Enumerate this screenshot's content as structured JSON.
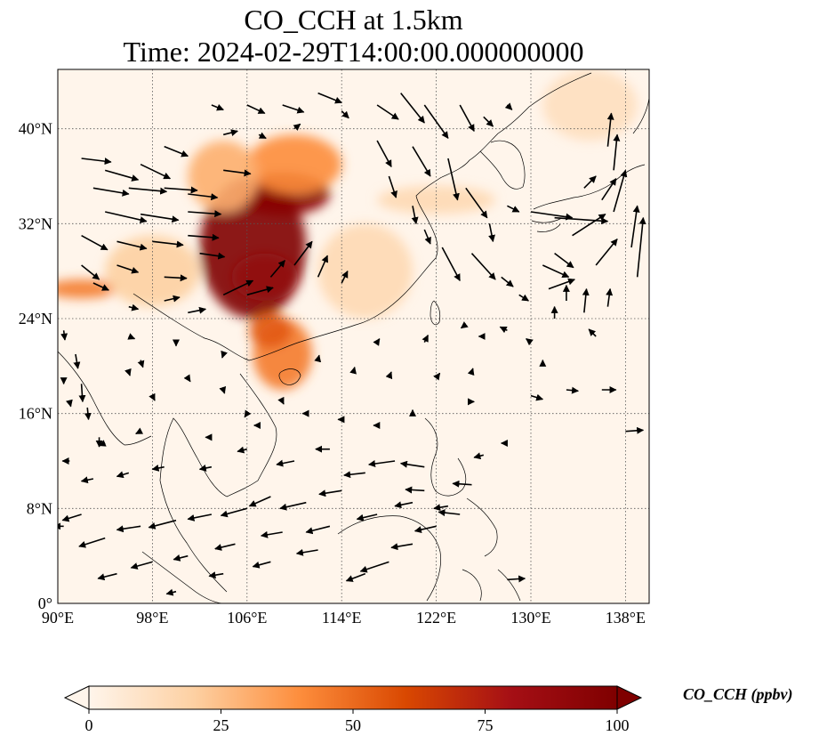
{
  "title": {
    "line1": "CO_CCH at 1.5km",
    "line2": "Time: 2024-02-29T14:00:00.000000000"
  },
  "map": {
    "lon_range": [
      90,
      140
    ],
    "lat_range": [
      0,
      45
    ],
    "lon_ticks": [
      {
        "value": 90,
        "label": "90°E"
      },
      {
        "value": 98,
        "label": "98°E"
      },
      {
        "value": 106,
        "label": "106°E"
      },
      {
        "value": 114,
        "label": "114°E"
      },
      {
        "value": 122,
        "label": "122°E"
      },
      {
        "value": 130,
        "label": "130°E"
      },
      {
        "value": 138,
        "label": "138°E"
      }
    ],
    "lat_ticks": [
      {
        "value": 0,
        "label": "0°"
      },
      {
        "value": 8,
        "label": "8°N"
      },
      {
        "value": 16,
        "label": "16°N"
      },
      {
        "value": 24,
        "label": "24°N"
      },
      {
        "value": 32,
        "label": "32°N"
      },
      {
        "value": 40,
        "label": "40°N"
      }
    ],
    "gridlines": true,
    "background_color": "#fff5eb"
  },
  "colorbar": {
    "label": "CO_CCH (ppbv)",
    "range": [
      0,
      100
    ],
    "ticks": [
      {
        "value": 0,
        "label": "0"
      },
      {
        "value": 25,
        "label": "25"
      },
      {
        "value": 50,
        "label": "50"
      },
      {
        "value": 75,
        "label": "75"
      },
      {
        "value": 100,
        "label": "100"
      }
    ],
    "colormap": [
      "#fff5eb",
      "#fdd0a2",
      "#fd8d3c",
      "#d94801",
      "#a50f15",
      "#7f0000"
    ],
    "extend": "both"
  },
  "plumes": [
    {
      "lon": 106.5,
      "lat": 30,
      "rx": 4.5,
      "ry": 6,
      "value": 100
    },
    {
      "lon": 109,
      "lat": 34.5,
      "rx": 4,
      "ry": 1.8,
      "value": 95
    },
    {
      "lon": 107.5,
      "lat": 27.5,
      "rx": 2.8,
      "ry": 2,
      "value": 90
    },
    {
      "lon": 110,
      "lat": 37,
      "rx": 4,
      "ry": 2.5,
      "value": 40
    },
    {
      "lon": 109,
      "lat": 21,
      "rx": 2.5,
      "ry": 3,
      "value": 45
    },
    {
      "lon": 108,
      "lat": 23,
      "rx": 1.8,
      "ry": 1.5,
      "value": 55
    },
    {
      "lon": 92,
      "lat": 26.5,
      "rx": 3,
      "ry": 0.8,
      "value": 45
    },
    {
      "lon": 116,
      "lat": 28,
      "rx": 4,
      "ry": 4,
      "value": 15
    },
    {
      "lon": 122,
      "lat": 34,
      "rx": 5,
      "ry": 1.2,
      "value": 15
    },
    {
      "lon": 98,
      "lat": 28,
      "rx": 4,
      "ry": 3,
      "value": 20
    },
    {
      "lon": 135,
      "lat": 42,
      "rx": 4,
      "ry": 3,
      "value": 12
    },
    {
      "lon": 104,
      "lat": 36,
      "rx": 3,
      "ry": 3,
      "value": 30
    }
  ],
  "wind_vectors": [
    [
      92,
      37.5,
      2.5,
      -0.3
    ],
    [
      94,
      36.5,
      2.8,
      -0.8
    ],
    [
      97,
      37,
      2.5,
      -1.2
    ],
    [
      99,
      38.5,
      2,
      -0.8
    ],
    [
      93,
      35,
      3,
      -0.5
    ],
    [
      96,
      35,
      3.2,
      -0.3
    ],
    [
      99,
      35,
      2.8,
      -0.2
    ],
    [
      101,
      34.5,
      2.5,
      -0.3
    ],
    [
      94,
      33,
      3.5,
      -0.8
    ],
    [
      97,
      32.8,
      3.2,
      -0.5
    ],
    [
      101,
      33,
      2.8,
      -0.2
    ],
    [
      92,
      31,
      2.2,
      -1.2
    ],
    [
      95,
      30.5,
      2.5,
      -0.6
    ],
    [
      98,
      30.5,
      2.6,
      -0.3
    ],
    [
      101,
      31,
      2.6,
      -0.2
    ],
    [
      92,
      28.5,
      1.5,
      -1.2
    ],
    [
      95,
      28.5,
      1.8,
      -0.6
    ],
    [
      99,
      27.5,
      1.9,
      -0.1
    ],
    [
      99,
      25.5,
      1.3,
      0.3
    ],
    [
      101,
      24.5,
      1.5,
      0.3
    ],
    [
      96,
      25,
      0.8,
      -0.2
    ],
    [
      104,
      26,
      2.5,
      1.2
    ],
    [
      106,
      26,
      2.2,
      0.6
    ],
    [
      108,
      27.5,
      1.2,
      1.4
    ],
    [
      110,
      28.5,
      1.5,
      2
    ],
    [
      112,
      27.5,
      0.8,
      1.8
    ],
    [
      114,
      27,
      0.5,
      1
    ],
    [
      104,
      36.5,
      2.3,
      -0.3
    ],
    [
      102,
      29.5,
      2.1,
      -0.3
    ],
    [
      103,
      42,
      1,
      -0.4
    ],
    [
      106,
      42,
      1.5,
      -0.7
    ],
    [
      109,
      42,
      1.8,
      -0.6
    ],
    [
      112,
      43,
      2,
      -0.8
    ],
    [
      104,
      39.5,
      1.2,
      0.3
    ],
    [
      107,
      39.5,
      0.6,
      -0.3
    ],
    [
      110,
      40,
      0.5,
      0.4
    ],
    [
      114,
      41.5,
      0.6,
      -0.6
    ],
    [
      117,
      42,
      1.8,
      -1.2
    ],
    [
      119,
      43,
      2,
      -2.5
    ],
    [
      121,
      42,
      2,
      -2.8
    ],
    [
      124,
      42,
      1.2,
      -2.2
    ],
    [
      126,
      41,
      0.8,
      -0.8
    ],
    [
      128,
      42,
      0.4,
      -0.4
    ],
    [
      117,
      39,
      1.2,
      -2.2
    ],
    [
      120,
      38.5,
      1.5,
      -2.5
    ],
    [
      123,
      37.5,
      0.8,
      -3.5
    ],
    [
      124.5,
      35,
      1.8,
      -2.5
    ],
    [
      118,
      36,
      0.6,
      -1.8
    ],
    [
      120,
      33.5,
      0.3,
      -1.5
    ],
    [
      121,
      31.5,
      0.5,
      -1.2
    ],
    [
      122.5,
      30,
      1.5,
      -2.8
    ],
    [
      125,
      29.5,
      2,
      -2.2
    ],
    [
      126.5,
      32,
      0.3,
      -1.5
    ],
    [
      127.5,
      27.5,
      1,
      -0.8
    ],
    [
      129,
      26,
      0.8,
      -0.5
    ],
    [
      131,
      28.5,
      2.2,
      -1
    ],
    [
      131.5,
      26.5,
      2.2,
      0.8
    ],
    [
      132,
      29.5,
      1.6,
      -1.2
    ],
    [
      133.5,
      31,
      2.8,
      1.8
    ],
    [
      135.5,
      28.5,
      1.8,
      2.2
    ],
    [
      137,
      33,
      1,
      3.5
    ],
    [
      138.5,
      30,
      0.5,
      3.5
    ],
    [
      139,
      27.5,
      0.5,
      5
    ],
    [
      136,
      34,
      1.2,
      1.8
    ],
    [
      132,
      32.5,
      4.5,
      -0.3
    ],
    [
      130,
      33,
      3.5,
      -0.5
    ],
    [
      128,
      33.5,
      1,
      -0.5
    ],
    [
      137,
      36.5,
      0.3,
      3
    ],
    [
      136.5,
      38.5,
      0.3,
      2.8
    ],
    [
      134.5,
      35,
      1,
      1
    ],
    [
      132,
      24,
      0,
      1
    ],
    [
      133,
      25.5,
      0,
      1.3
    ],
    [
      134.5,
      24.5,
      0.2,
      2
    ],
    [
      135.5,
      22.5,
      -0.6,
      0.6
    ],
    [
      136.5,
      25,
      0.2,
      1.5
    ],
    [
      130,
      22,
      -0.4,
      0.3
    ],
    [
      131,
      20,
      0,
      0.5
    ],
    [
      128,
      23,
      -0.6,
      0.3
    ],
    [
      126,
      22.5,
      -0.4,
      0
    ],
    [
      124.5,
      23.5,
      -0.4,
      -0.3
    ],
    [
      130,
      17.5,
      1,
      -0.3
    ],
    [
      133,
      18,
      1,
      -0.1
    ],
    [
      136,
      18,
      1.2,
      0
    ],
    [
      138,
      14.5,
      1.5,
      0.1
    ],
    [
      128,
      13.5,
      -0.5,
      0
    ],
    [
      126,
      12.5,
      -0.8,
      -0.2
    ],
    [
      125,
      10,
      -1.6,
      0.1
    ],
    [
      124,
      7.5,
      -1.8,
      0.2
    ],
    [
      122,
      6.5,
      -1.8,
      -0.4
    ],
    [
      120,
      5,
      -1.8,
      -0.3
    ],
    [
      118,
      3.5,
      -2.4,
      -0.8
    ],
    [
      116,
      2.5,
      -1.6,
      -0.6
    ],
    [
      128,
      2,
      1.5,
      0.1
    ],
    [
      121,
      11.5,
      -2,
      0.3
    ],
    [
      118.5,
      12,
      -2.2,
      -0.3
    ],
    [
      116,
      11,
      -1.8,
      -0.2
    ],
    [
      114,
      9.5,
      -1.9,
      -0.3
    ],
    [
      111,
      8.5,
      -2.2,
      -0.5
    ],
    [
      108,
      9,
      -1.8,
      -0.8
    ],
    [
      106,
      8,
      -2.2,
      -0.6
    ],
    [
      103,
      7.5,
      -2,
      -0.4
    ],
    [
      100,
      7,
      -2.3,
      -0.6
    ],
    [
      97,
      6.5,
      -2,
      -0.3
    ],
    [
      94,
      5.5,
      -2.2,
      -0.7
    ],
    [
      92,
      7.5,
      -1.6,
      -0.5
    ],
    [
      90.5,
      6.5,
      -0.8,
      0
    ],
    [
      120,
      8.5,
      -1.5,
      -0.3
    ],
    [
      117,
      7.5,
      -1.7,
      -0.4
    ],
    [
      113,
      6.5,
      -2,
      -0.5
    ],
    [
      109,
      6,
      -1.8,
      -0.3
    ],
    [
      105,
      5,
      -1.7,
      -0.4
    ],
    [
      101,
      4,
      -1.2,
      -0.3
    ],
    [
      98,
      3.5,
      -1.8,
      -0.5
    ],
    [
      95,
      2.5,
      -1.6,
      -0.4
    ],
    [
      112,
      4.5,
      -1.8,
      -0.3
    ],
    [
      108,
      3.5,
      -1.5,
      -0.4
    ],
    [
      104,
      2.5,
      -1.2,
      -0.2
    ],
    [
      100,
      1,
      -0.8,
      -0.2
    ],
    [
      121,
      9.5,
      -1.6,
      0.1
    ],
    [
      123,
      8.2,
      -1.2,
      -0.2
    ],
    [
      110,
      12,
      -1.5,
      -0.3
    ],
    [
      113,
      13,
      -1.2,
      0
    ],
    [
      106,
      13,
      -0.8,
      -0.2
    ],
    [
      103,
      11.5,
      -1,
      -0.2
    ],
    [
      99,
      11.5,
      -1,
      -0.2
    ],
    [
      96,
      11,
      -1,
      -0.3
    ],
    [
      93,
      10.5,
      -1,
      -0.2
    ],
    [
      94,
      13.5,
      -0.5,
      -0.2
    ],
    [
      91,
      12,
      -0.6,
      0
    ],
    [
      97,
      14.5,
      -0.4,
      -0.2
    ],
    [
      103,
      14,
      -0.5,
      0
    ],
    [
      107,
      15,
      -0.4,
      0
    ],
    [
      111,
      16,
      -0.3,
      0
    ],
    [
      114,
      15.5,
      -0.3,
      0
    ],
    [
      117,
      15,
      -0.3,
      0
    ],
    [
      120,
      16,
      0,
      0.3
    ],
    [
      118,
      19,
      0.2,
      0.5
    ],
    [
      115,
      19.5,
      0.1,
      0.4
    ],
    [
      112,
      20.5,
      0.1,
      0.4
    ],
    [
      117,
      22,
      0.2,
      0.3
    ],
    [
      122,
      19,
      0.3,
      0.4
    ],
    [
      125,
      19.5,
      0.1,
      0.3
    ],
    [
      121,
      22,
      0.3,
      0.6
    ],
    [
      125,
      17,
      0.2,
      0
    ],
    [
      90.5,
      23,
      0.1,
      -0.8
    ],
    [
      91.5,
      21,
      0.2,
      -1.2
    ],
    [
      92,
      18.5,
      0.1,
      -1.5
    ],
    [
      92.5,
      16.5,
      0.1,
      -1
    ],
    [
      90.5,
      19,
      0,
      -0.5
    ],
    [
      93.5,
      14,
      0,
      -0.8
    ],
    [
      97,
      20.5,
      0.2,
      -0.6
    ],
    [
      98,
      17.5,
      0.2,
      -0.4
    ],
    [
      101,
      19,
      0.2,
      -0.3
    ],
    [
      104,
      18,
      0.1,
      -0.3
    ],
    [
      106,
      16,
      -0.2,
      -0.3
    ],
    [
      109,
      17,
      0.1,
      -0.2
    ],
    [
      104,
      21,
      -0.1,
      -0.3
    ],
    [
      100,
      22,
      0,
      -0.3
    ],
    [
      91,
      17,
      0.1,
      -0.4
    ],
    [
      96,
      19.5,
      0.1,
      -0.3
    ],
    [
      93,
      27,
      1.3,
      -0.6
    ],
    [
      96,
      22.5,
      0.5,
      -0.2
    ]
  ]
}
